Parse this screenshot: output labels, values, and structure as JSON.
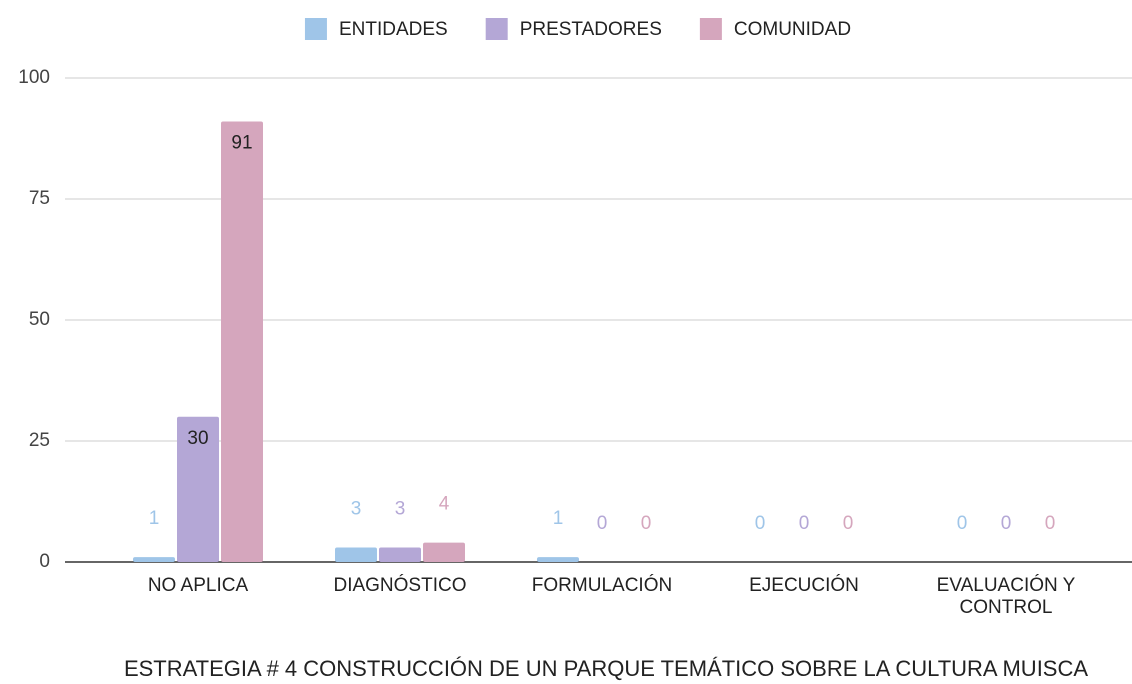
{
  "chart_data": {
    "type": "bar",
    "title": "ESTRATEGIA # 4 CONSTRUCCIÓN DE UN PARQUE TEMÁTICO SOBRE LA CULTURA MUISCA",
    "categories": [
      "NO APLICA",
      "DIAGNÓSTICO",
      "FORMULACIÓN",
      "EJECUCIÓN",
      "EVALUACIÓN Y CONTROL"
    ],
    "series": [
      {
        "name": "ENTIDADES",
        "color": "#9fc5e8",
        "values": [
          1,
          3,
          1,
          0,
          0
        ]
      },
      {
        "name": "PRESTADORES",
        "color": "#b4a7d6",
        "values": [
          30,
          3,
          0,
          0,
          0
        ]
      },
      {
        "name": "COMUNIDAD",
        "color": "#d5a6bd",
        "values": [
          91,
          4,
          0,
          0,
          0
        ]
      }
    ],
    "ylim": [
      0,
      100
    ],
    "yticks": [
      0,
      25,
      50,
      75,
      100
    ],
    "grid": true,
    "legend": "top"
  }
}
